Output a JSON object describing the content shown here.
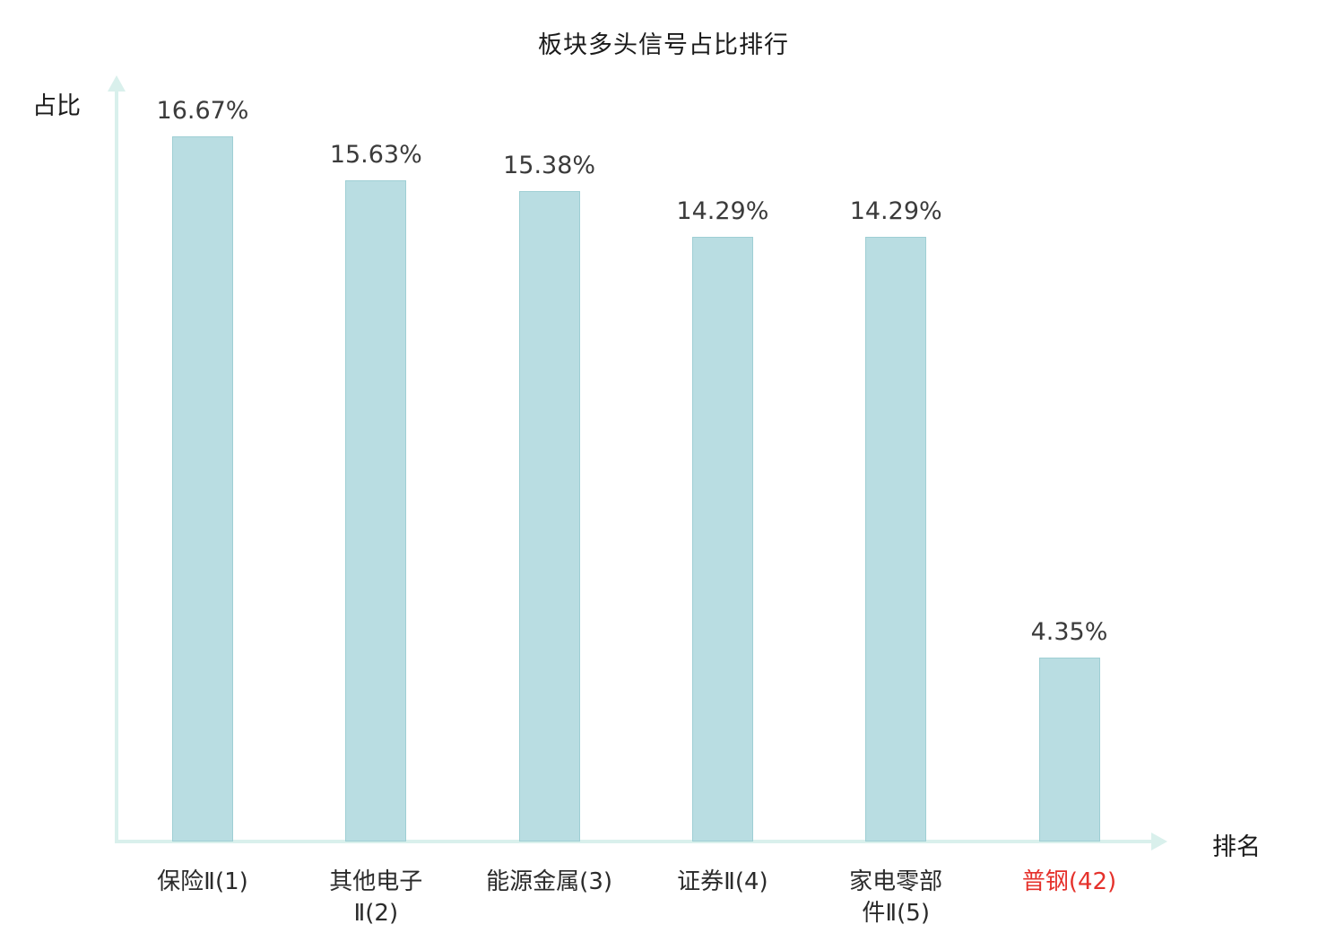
{
  "chart_data": {
    "type": "bar",
    "title": "板块多头信号占比排行",
    "xlabel": "排名",
    "ylabel": "占比",
    "categories": [
      "保险Ⅱ(1)",
      "其他电子\nⅡ(2)",
      "能源金属(3)",
      "证券Ⅱ(4)",
      "家电零部\n件Ⅱ(5)",
      "普钢(42)"
    ],
    "values": [
      16.67,
      15.63,
      15.38,
      14.29,
      14.29,
      4.35
    ],
    "value_labels": [
      "16.67%",
      "15.63%",
      "15.38%",
      "14.29%",
      "14.29%",
      "4.35%"
    ],
    "highlight_index": 5,
    "ylim": [
      0,
      18
    ],
    "grid": false,
    "legend": null,
    "colors": {
      "bar_fill": "#b9dde2",
      "bar_border": "#9fcfd4",
      "axis": "#d9f0ec",
      "value_label": "#3b3b3b",
      "category_label": "#2b2b2b",
      "highlight_label": "#e5312b"
    }
  }
}
